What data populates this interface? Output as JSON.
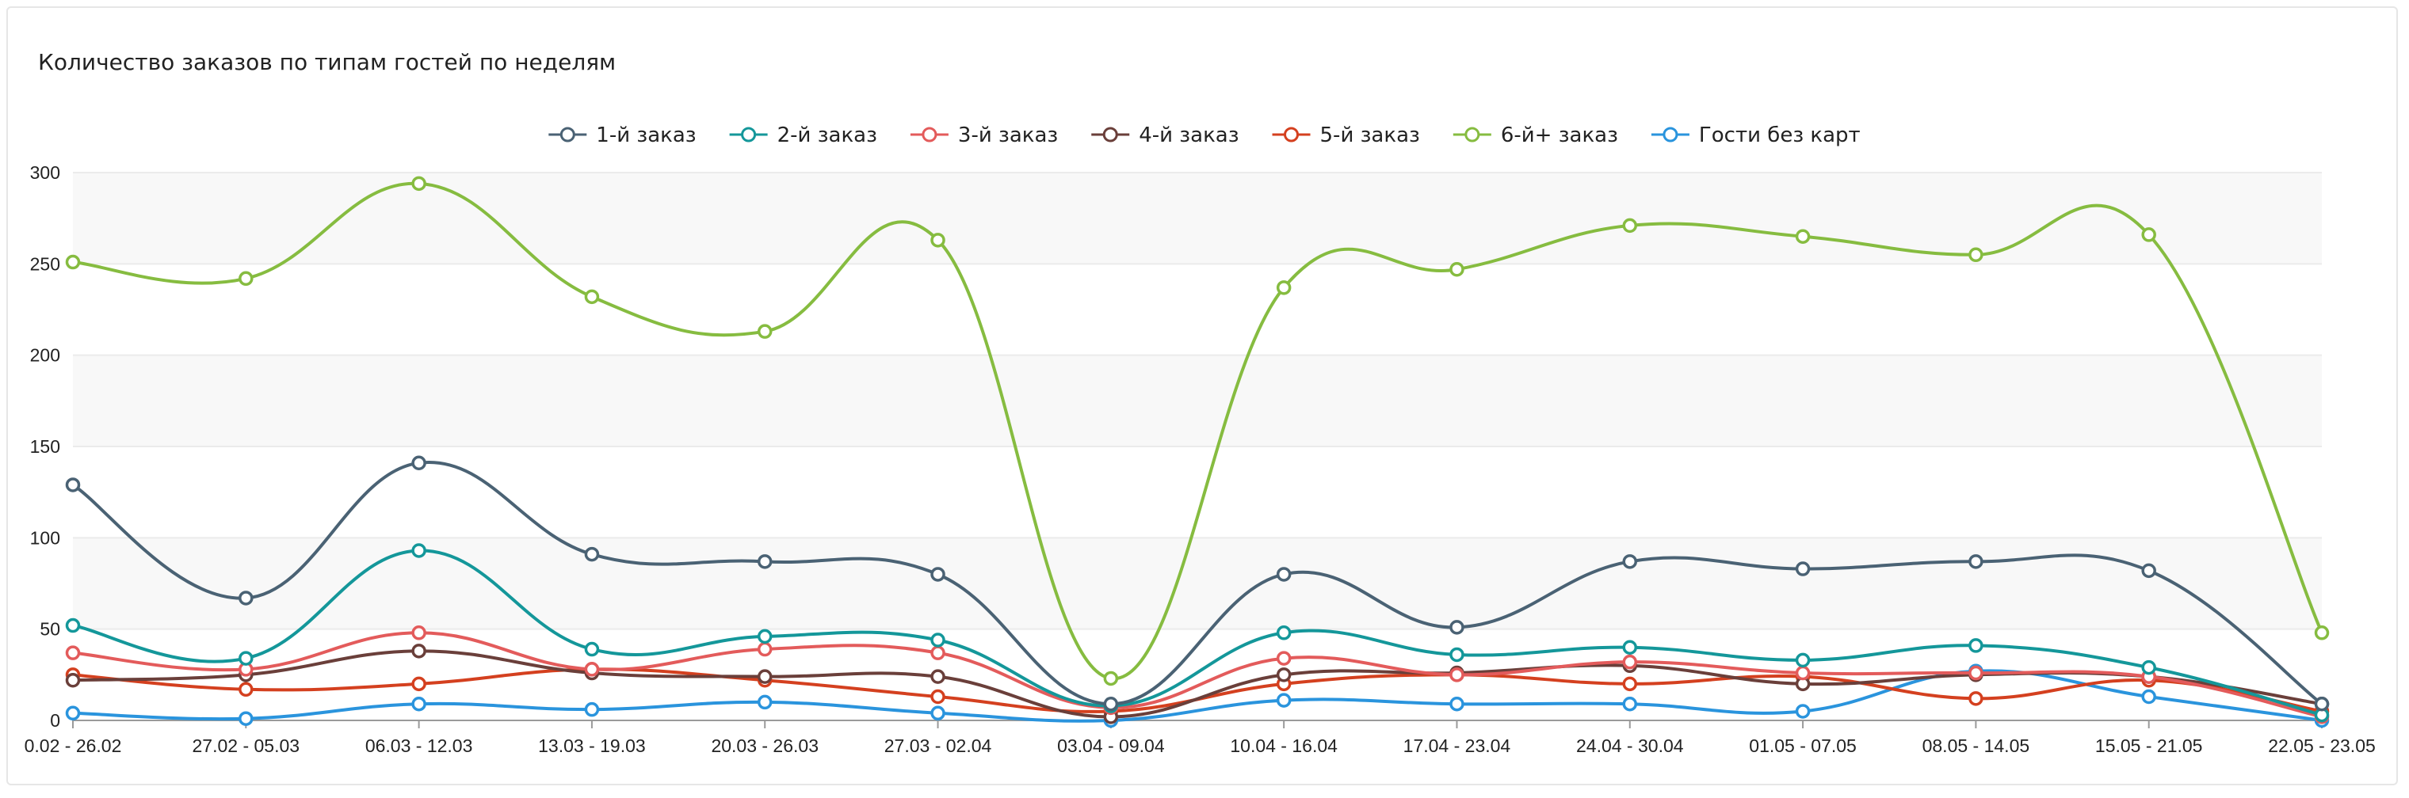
{
  "chart_data": {
    "type": "line",
    "title": "Количество заказов по типам гостей по неделям",
    "xlabel": "",
    "ylabel": "",
    "ylim": [
      0,
      300
    ],
    "yticks": [
      "0",
      "50",
      "100",
      "150",
      "200",
      "250",
      "300"
    ],
    "categories": [
      "0.02 - 26.02",
      "27.02 - 05.03",
      "06.03 - 12.03",
      "13.03 - 19.03",
      "20.03 - 26.03",
      "27.03 - 02.04",
      "03.04 - 09.04",
      "10.04 - 16.04",
      "17.04 - 23.04",
      "24.04 - 30.04",
      "01.05 - 07.05",
      "08.05 - 14.05",
      "15.05 - 21.05",
      "22.05 - 23.05"
    ],
    "legend_position": "top-center",
    "grid": true,
    "series": [
      {
        "name": "1-й заказ",
        "color": "#4a6274",
        "values": [
          129,
          67,
          141,
          91,
          87,
          80,
          9,
          80,
          51,
          87,
          83,
          87,
          82,
          9
        ]
      },
      {
        "name": "2-й заказ",
        "color": "#14979a",
        "values": [
          52,
          34,
          93,
          39,
          46,
          44,
          8,
          48,
          36,
          40,
          33,
          41,
          29,
          3
        ]
      },
      {
        "name": "3-й заказ",
        "color": "#e35b5b",
        "values": [
          37,
          28,
          48,
          28,
          39,
          37,
          7,
          34,
          25,
          32,
          26,
          26,
          24,
          2
        ]
      },
      {
        "name": "4-й заказ",
        "color": "#6a3f3a",
        "values": [
          22,
          25,
          38,
          26,
          24,
          24,
          2,
          25,
          26,
          30,
          20,
          25,
          24,
          9
        ]
      },
      {
        "name": "5-й заказ",
        "color": "#d4401f",
        "values": [
          25,
          17,
          20,
          28,
          22,
          13,
          5,
          20,
          25,
          20,
          24,
          12,
          22,
          5
        ]
      },
      {
        "name": "6-й+ заказ",
        "color": "#86bc40",
        "values": [
          251,
          242,
          294,
          232,
          213,
          263,
          23,
          237,
          247,
          271,
          265,
          255,
          266,
          48
        ]
      },
      {
        "name": "Гости без карт",
        "color": "#2a94dd",
        "values": [
          4,
          1,
          9,
          6,
          10,
          4,
          0,
          11,
          9,
          9,
          5,
          27,
          13,
          0
        ]
      }
    ]
  }
}
